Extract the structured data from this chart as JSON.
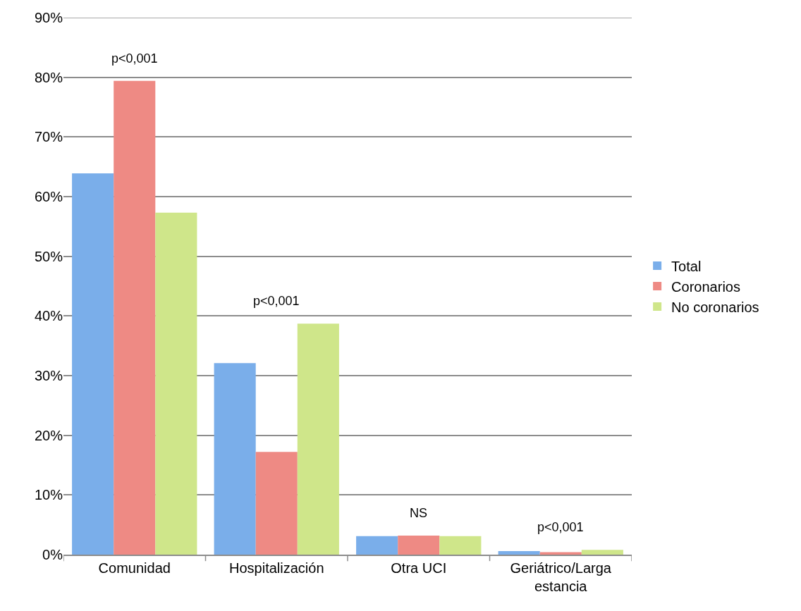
{
  "chart_data": {
    "type": "bar",
    "categories": [
      "Comunidad",
      "Hospitalización",
      "Otra UCI",
      "Geriátrico/Larga\nestancia"
    ],
    "series": [
      {
        "name": "Total",
        "color": "#7aaeea",
        "values": [
          63.9,
          32.1,
          3.1,
          0.6
        ]
      },
      {
        "name": "Coronarios",
        "color": "#ee8a84",
        "values": [
          79.4,
          17.2,
          3.2,
          0.4
        ]
      },
      {
        "name": "No coronarios",
        "color": "#cfe68a",
        "values": [
          57.3,
          38.7,
          3.1,
          0.8
        ]
      }
    ],
    "ylim": [
      0,
      90
    ],
    "yticks": [
      {
        "value": 0,
        "label": "0%"
      },
      {
        "value": 10,
        "label": "10%"
      },
      {
        "value": 20,
        "label": "20%"
      },
      {
        "value": 30,
        "label": "30%"
      },
      {
        "value": 40,
        "label": "40%"
      },
      {
        "value": 50,
        "label": "50%"
      },
      {
        "value": 60,
        "label": "60%"
      },
      {
        "value": 70,
        "label": "70%"
      },
      {
        "value": 80,
        "label": "80%"
      },
      {
        "value": 90,
        "label": "90%"
      }
    ],
    "annotations": [
      "p<0,001",
      "p<0,001",
      "NS",
      "p<0,001"
    ],
    "grid": "y",
    "legend": "right"
  }
}
